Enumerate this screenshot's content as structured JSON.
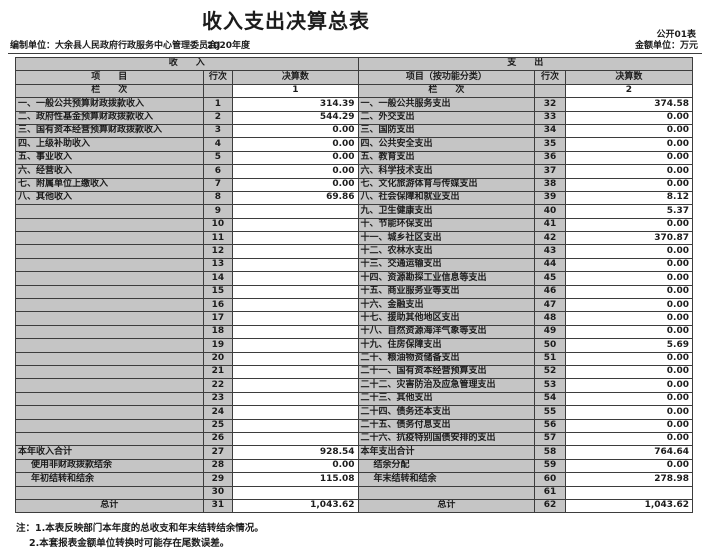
{
  "meta": {
    "title": "收入支出决算总表",
    "form_code": "公开01表",
    "prepared_by_label": "编制单位：",
    "prepared_by": "大余县人民政府行政服务中心管理委员会J",
    "year": "2020年度",
    "unit_label": "金额单位：万元"
  },
  "colors": {
    "cell_shade": "#c5c5c5",
    "data_cell": "#ffffff",
    "border": "#3d3d3d",
    "text": "#1c1c1c"
  },
  "table": {
    "income_header": "收　　入",
    "expense_header": "支　　出",
    "columns": {
      "item": "项　　目",
      "item_func": "项目（按功能分类）",
      "line_no": "行次",
      "amount": "决算数"
    },
    "column_row_label": "栏　　次",
    "income_col_no": "1",
    "expense_col_no": "2",
    "rows": [
      {
        "in": {
          "label": "一、一般公共预算财政拨款收入",
          "line": "1",
          "amt": "314.39",
          "style": ""
        },
        "ex": {
          "label": "一、一般公共服务支出",
          "line": "32",
          "amt": "374.58",
          "style": ""
        }
      },
      {
        "in": {
          "label": "二、政府性基金预算财政拨款收入",
          "line": "2",
          "amt": "544.29",
          "style": ""
        },
        "ex": {
          "label": "二、外交支出",
          "line": "33",
          "amt": "0.00",
          "style": ""
        }
      },
      {
        "in": {
          "label": "三、国有资本经营预算财政拨款收入",
          "line": "3",
          "amt": "0.00",
          "style": ""
        },
        "ex": {
          "label": "三、国防支出",
          "line": "34",
          "amt": "0.00",
          "style": ""
        }
      },
      {
        "in": {
          "label": "四、上级补助收入",
          "line": "4",
          "amt": "0.00",
          "style": ""
        },
        "ex": {
          "label": "四、公共安全支出",
          "line": "35",
          "amt": "0.00",
          "style": ""
        }
      },
      {
        "in": {
          "label": "五、事业收入",
          "line": "5",
          "amt": "0.00",
          "style": ""
        },
        "ex": {
          "label": "五、教育支出",
          "line": "36",
          "amt": "0.00",
          "style": ""
        }
      },
      {
        "in": {
          "label": "六、经营收入",
          "line": "6",
          "amt": "0.00",
          "style": ""
        },
        "ex": {
          "label": "六、科学技术支出",
          "line": "37",
          "amt": "0.00",
          "style": ""
        }
      },
      {
        "in": {
          "label": "七、附属单位上缴收入",
          "line": "7",
          "amt": "0.00",
          "style": ""
        },
        "ex": {
          "label": "七、文化旅游体育与传媒支出",
          "line": "38",
          "amt": "0.00",
          "style": ""
        }
      },
      {
        "in": {
          "label": "八、其他收入",
          "line": "8",
          "amt": "69.86",
          "style": ""
        },
        "ex": {
          "label": "八、社会保障和就业支出",
          "line": "39",
          "amt": "8.12",
          "style": ""
        }
      },
      {
        "in": {
          "label": "",
          "line": "9",
          "amt": "",
          "style": ""
        },
        "ex": {
          "label": "九、卫生健康支出",
          "line": "40",
          "amt": "5.37",
          "style": ""
        }
      },
      {
        "in": {
          "label": "",
          "line": "10",
          "amt": "",
          "style": ""
        },
        "ex": {
          "label": "十、节能环保支出",
          "line": "41",
          "amt": "0.00",
          "style": ""
        }
      },
      {
        "in": {
          "label": "",
          "line": "11",
          "amt": "",
          "style": ""
        },
        "ex": {
          "label": "十一、城乡社区支出",
          "line": "42",
          "amt": "370.87",
          "style": ""
        }
      },
      {
        "in": {
          "label": "",
          "line": "12",
          "amt": "",
          "style": ""
        },
        "ex": {
          "label": "十二、农林水支出",
          "line": "43",
          "amt": "0.00",
          "style": ""
        }
      },
      {
        "in": {
          "label": "",
          "line": "13",
          "amt": "",
          "style": ""
        },
        "ex": {
          "label": "十三、交通运输支出",
          "line": "44",
          "amt": "0.00",
          "style": ""
        }
      },
      {
        "in": {
          "label": "",
          "line": "14",
          "amt": "",
          "style": ""
        },
        "ex": {
          "label": "十四、资源勘探工业信息等支出",
          "line": "45",
          "amt": "0.00",
          "style": ""
        }
      },
      {
        "in": {
          "label": "",
          "line": "15",
          "amt": "",
          "style": ""
        },
        "ex": {
          "label": "十五、商业服务业等支出",
          "line": "46",
          "amt": "0.00",
          "style": ""
        }
      },
      {
        "in": {
          "label": "",
          "line": "16",
          "amt": "",
          "style": ""
        },
        "ex": {
          "label": "十六、金融支出",
          "line": "47",
          "amt": "0.00",
          "style": ""
        }
      },
      {
        "in": {
          "label": "",
          "line": "17",
          "amt": "",
          "style": ""
        },
        "ex": {
          "label": "十七、援助其他地区支出",
          "line": "48",
          "amt": "0.00",
          "style": ""
        }
      },
      {
        "in": {
          "label": "",
          "line": "18",
          "amt": "",
          "style": ""
        },
        "ex": {
          "label": "十八、自然资源海洋气象等支出",
          "line": "49",
          "amt": "0.00",
          "style": ""
        }
      },
      {
        "in": {
          "label": "",
          "line": "19",
          "amt": "",
          "style": ""
        },
        "ex": {
          "label": "十九、住房保障支出",
          "line": "50",
          "amt": "5.69",
          "style": ""
        }
      },
      {
        "in": {
          "label": "",
          "line": "20",
          "amt": "",
          "style": ""
        },
        "ex": {
          "label": "二十、粮油物资储备支出",
          "line": "51",
          "amt": "0.00",
          "style": ""
        }
      },
      {
        "in": {
          "label": "",
          "line": "21",
          "amt": "",
          "style": ""
        },
        "ex": {
          "label": "二十一、国有资本经营预算支出",
          "line": "52",
          "amt": "0.00",
          "style": ""
        }
      },
      {
        "in": {
          "label": "",
          "line": "22",
          "amt": "",
          "style": ""
        },
        "ex": {
          "label": "二十二、灾害防治及应急管理支出",
          "line": "53",
          "amt": "0.00",
          "style": ""
        }
      },
      {
        "in": {
          "label": "",
          "line": "23",
          "amt": "",
          "style": ""
        },
        "ex": {
          "label": "二十三、其他支出",
          "line": "54",
          "amt": "0.00",
          "style": ""
        }
      },
      {
        "in": {
          "label": "",
          "line": "24",
          "amt": "",
          "style": ""
        },
        "ex": {
          "label": "二十四、债务还本支出",
          "line": "55",
          "amt": "0.00",
          "style": ""
        }
      },
      {
        "in": {
          "label": "",
          "line": "25",
          "amt": "",
          "style": ""
        },
        "ex": {
          "label": "二十五、债务付息支出",
          "line": "56",
          "amt": "0.00",
          "style": ""
        }
      },
      {
        "in": {
          "label": "",
          "line": "26",
          "amt": "",
          "style": ""
        },
        "ex": {
          "label": "二十六、抗疫特别国债安排的支出",
          "line": "57",
          "amt": "0.00",
          "style": ""
        }
      },
      {
        "in": {
          "label": "本年收入合计",
          "line": "27",
          "amt": "928.54",
          "style": ""
        },
        "ex": {
          "label": "本年支出合计",
          "line": "58",
          "amt": "764.64",
          "style": ""
        }
      },
      {
        "in": {
          "label": "使用非财政拨款结余",
          "line": "28",
          "amt": "0.00",
          "style": "ind"
        },
        "ex": {
          "label": "结余分配",
          "line": "59",
          "amt": "0.00",
          "style": "ind"
        }
      },
      {
        "in": {
          "label": "年初结转和结余",
          "line": "29",
          "amt": "115.08",
          "style": "ind"
        },
        "ex": {
          "label": "年末结转和结余",
          "line": "60",
          "amt": "278.98",
          "style": "ind"
        }
      },
      {
        "in": {
          "label": "",
          "line": "30",
          "amt": "",
          "style": ""
        },
        "ex": {
          "label": "",
          "line": "61",
          "amt": "",
          "style": ""
        }
      },
      {
        "in": {
          "label": "总计",
          "line": "31",
          "amt": "1,043.62",
          "style": "tot"
        },
        "ex": {
          "label": "总计",
          "line": "62",
          "amt": "1,043.62",
          "style": "tot"
        }
      }
    ]
  },
  "notes": [
    "注：1.本表反映部门本年度的总收支和年末结转结余情况。",
    "2.本套报表金额单位转换时可能存在尾数误差。"
  ]
}
